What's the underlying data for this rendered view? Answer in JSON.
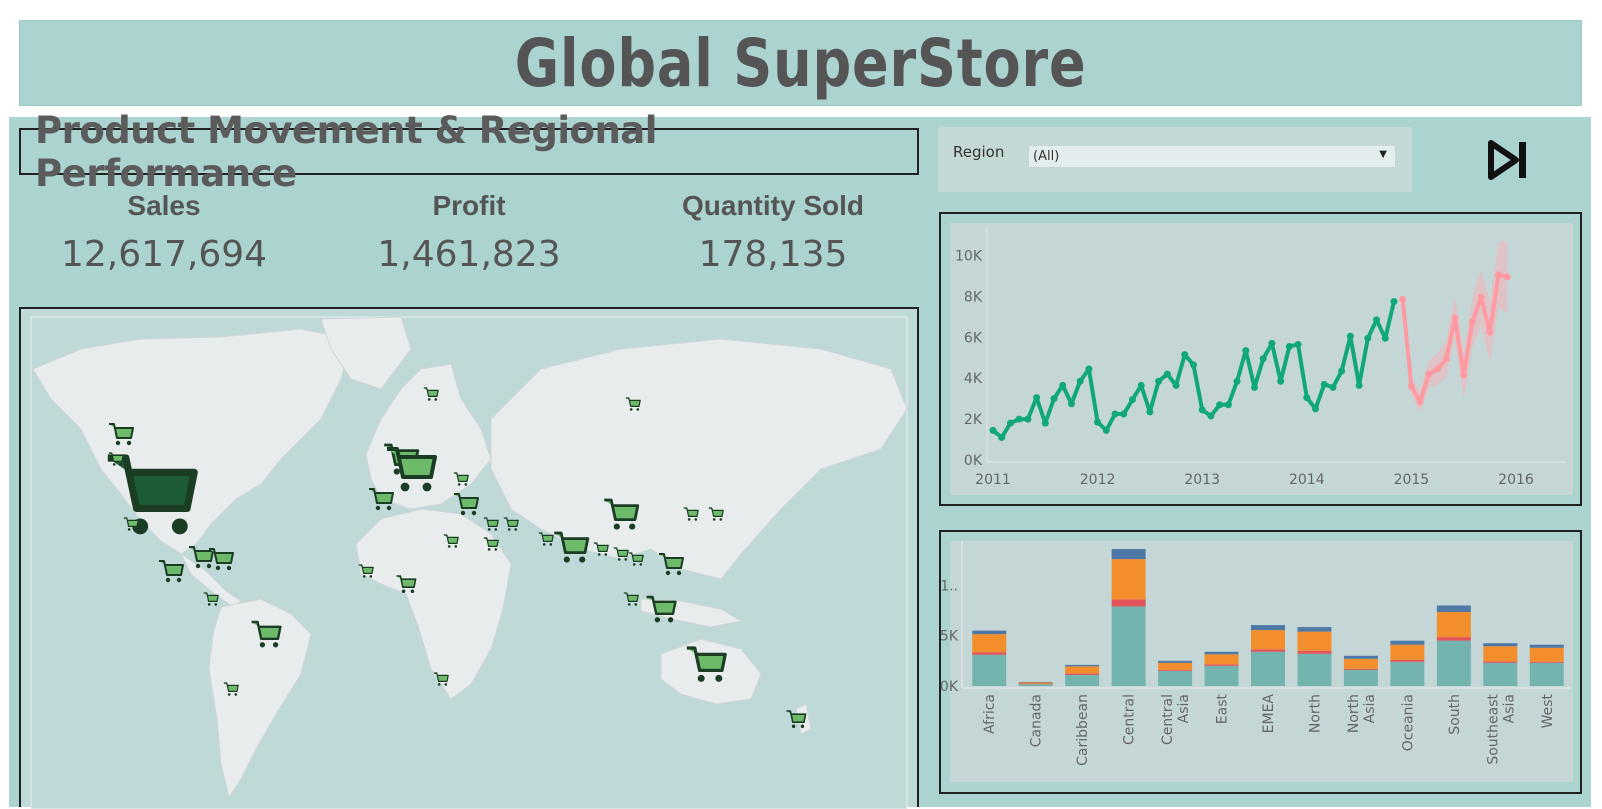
{
  "header": {
    "title": "Global SuperStore"
  },
  "subtitle": "Product Movement & Regional Performance",
  "kpis": [
    {
      "label": "Sales",
      "value": "12,617,694"
    },
    {
      "label": "Profit",
      "value": "1,461,823"
    },
    {
      "label": "Quantity Sold",
      "value": "178,135"
    }
  ],
  "filter": {
    "label": "Region",
    "selected": "(All)"
  },
  "colors": {
    "banner": "#abd3cf",
    "actual_line": "#11a879",
    "forecast_line": "#ff9aa2",
    "cart_large": "#1e5c38",
    "cart_small": "#6dbb6a",
    "bar_teal": "#74b4ae",
    "bar_red": "#e2545a",
    "bar_orange": "#f28e2c",
    "bar_blue": "#4e79a7"
  },
  "chart_data": [
    {
      "type": "line",
      "x_ticks": [
        "2011",
        "2012",
        "2013",
        "2014",
        "2015",
        "2016"
      ],
      "y_ticks": [
        "0K",
        "2K",
        "4K",
        "6K",
        "8K",
        "10K"
      ],
      "ylim": [
        0,
        11000
      ],
      "series": [
        {
          "kind": "actual",
          "start": "2011-01",
          "values": [
            1450,
            1100,
            1800,
            2000,
            2000,
            3050,
            1800,
            3000,
            3650,
            2750,
            3850,
            4450,
            1850,
            1450,
            2250,
            2250,
            2950,
            3650,
            2350,
            3850,
            4200,
            3650,
            5150,
            4650,
            2450,
            2150,
            2700,
            2700,
            3850,
            5350,
            3550,
            4950,
            5700,
            3850,
            5550,
            5650,
            3050,
            2500,
            3700,
            3550,
            4350,
            6050,
            3650,
            5950,
            6850,
            5950,
            7750
          ]
        },
        {
          "kind": "forecast",
          "start": "2014-12",
          "values": [
            7850,
            3600,
            2850,
            4200,
            4450,
            4950,
            6950,
            4150,
            6750,
            7950,
            6250,
            9050,
            8950
          ]
        }
      ]
    },
    {
      "type": "bar",
      "stacked": true,
      "categories": [
        "Africa",
        "Canada",
        "Caribbean",
        "Central",
        "Central Asia",
        "East",
        "EMEA",
        "North",
        "North Asia",
        "Oceania",
        "South",
        "Southeast Asia",
        "West"
      ],
      "y_ticks": [
        "0K",
        "5K",
        "1.."
      ],
      "ylim": [
        0,
        14000
      ],
      "series": [
        {
          "color": "#74b4ae",
          "values": [
            3100,
            180,
            1100,
            7900,
            1500,
            2000,
            3400,
            3200,
            1600,
            2400,
            4500,
            2300,
            2300
          ]
        },
        {
          "color": "#e2545a",
          "values": [
            250,
            60,
            150,
            700,
            100,
            150,
            250,
            300,
            100,
            200,
            350,
            150,
            100
          ]
        },
        {
          "color": "#f28e2c",
          "values": [
            1800,
            120,
            700,
            4000,
            700,
            1000,
            1900,
            1900,
            1000,
            1500,
            2500,
            1500,
            1400
          ]
        },
        {
          "color": "#4e79a7",
          "values": [
            350,
            40,
            150,
            1000,
            200,
            250,
            500,
            450,
            300,
            400,
            650,
            300,
            300
          ]
        }
      ]
    }
  ]
}
